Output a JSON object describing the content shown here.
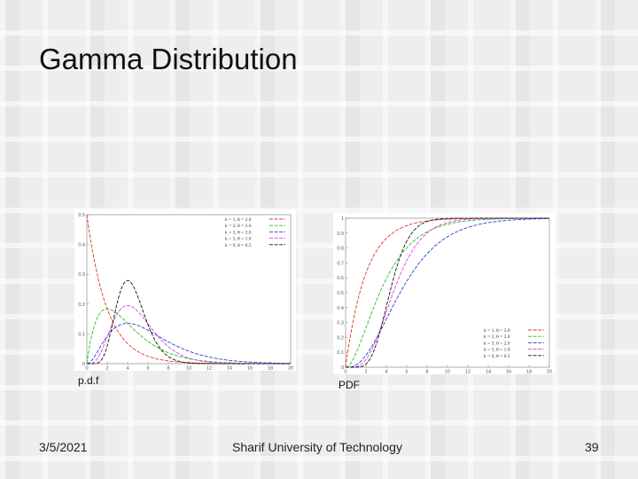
{
  "slide": {
    "title": "Gamma Distribution",
    "footer_date": "3/5/2021",
    "footer_center": "Sharif University of Technology",
    "page_number": "39"
  },
  "captions": {
    "pdf": "p.d.f",
    "cdf": "PDF"
  },
  "chart_data": [
    {
      "type": "line",
      "kind": "pdf",
      "xlim": [
        0,
        20
      ],
      "ylim": [
        0,
        0.5
      ],
      "x_ticks": [
        0,
        2,
        4,
        6,
        8,
        10,
        12,
        14,
        16,
        18,
        20
      ],
      "y_ticks": [
        0,
        0.1,
        0.2,
        0.3,
        0.4,
        0.5
      ],
      "y_tick_labels": [
        "0",
        "0.1",
        "0.2",
        "0.3",
        "0.4",
        "0.5"
      ],
      "legend_position": "top-right",
      "series": [
        {
          "name": "k = 1, θ = 2.0",
          "k": 1,
          "theta": 2.0,
          "color": "#e8312a"
        },
        {
          "name": "k = 2, θ = 2.0",
          "k": 2,
          "theta": 2.0,
          "color": "#22c322"
        },
        {
          "name": "k = 3, θ = 2.0",
          "k": 3,
          "theta": 2.0,
          "color": "#2a3fd6"
        },
        {
          "name": "k = 5, θ = 1.0",
          "k": 5,
          "theta": 1.0,
          "color": "#e040e0"
        },
        {
          "name": "k = 9, θ = 0.5",
          "k": 9,
          "theta": 0.5,
          "color": "#111111"
        }
      ]
    },
    {
      "type": "line",
      "kind": "cdf",
      "xlim": [
        0,
        20
      ],
      "ylim": [
        0,
        1
      ],
      "x_ticks": [
        0,
        2,
        4,
        6,
        8,
        10,
        12,
        14,
        16,
        18,
        20
      ],
      "y_ticks": [
        0,
        0.1,
        0.2,
        0.3,
        0.4,
        0.5,
        0.6,
        0.7,
        0.8,
        0.9,
        1
      ],
      "y_tick_labels": [
        "0",
        "0.1",
        "0.2",
        "0.3",
        "0.4",
        "0.5",
        "0.6",
        "0.7",
        "0.8",
        "0.9",
        "1"
      ],
      "legend_position": "bottom-right",
      "series": [
        {
          "name": "k = 1, θ = 2.0",
          "k": 1,
          "theta": 2.0,
          "color": "#e8312a"
        },
        {
          "name": "k = 2, θ = 2.0",
          "k": 2,
          "theta": 2.0,
          "color": "#22c322"
        },
        {
          "name": "k = 3, θ = 2.0",
          "k": 3,
          "theta": 2.0,
          "color": "#2a3fd6"
        },
        {
          "name": "k = 5, θ = 1.0",
          "k": 5,
          "theta": 1.0,
          "color": "#e040e0"
        },
        {
          "name": "k = 9, θ = 0.5",
          "k": 9,
          "theta": 0.5,
          "color": "#111111"
        }
      ]
    }
  ]
}
